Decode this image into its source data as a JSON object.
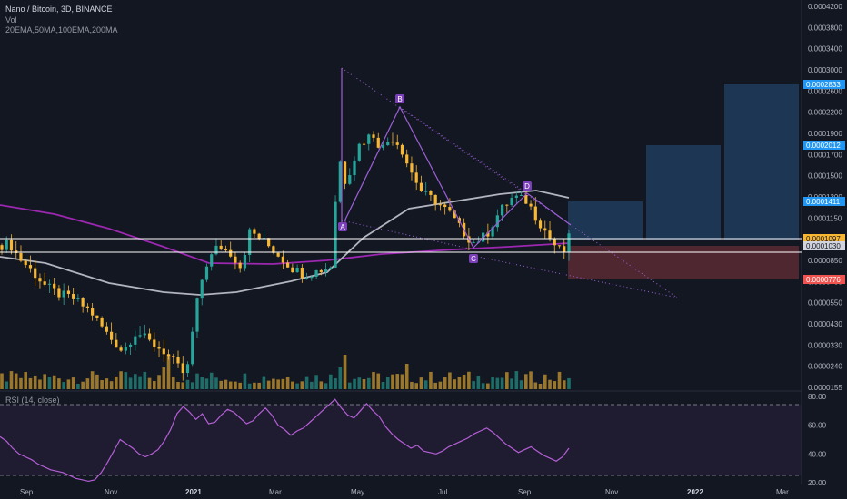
{
  "header": {
    "symbol_line": "Nano / Bitcoin, 3D, BINANCE",
    "vol_label": "Vol",
    "ema_label": "20EMA,50MA,100EMA,200MA",
    "rsi_label": "RSI (14, close)"
  },
  "colors": {
    "background": "#131722",
    "up": "#26a69a",
    "down": "#f7b733",
    "ma_gray": "#b2b5be",
    "ma_purple": "#9c27b0",
    "pattern": "#9c5fd6",
    "rsi": "#b45fd6",
    "target_blue": "#1f3a5a",
    "stop_red": "#5b2a32",
    "badge_blue": "#2196f3",
    "badge_yellow": "#f7b733",
    "badge_red": "#ef5350"
  },
  "chart_data": {
    "type": "candlestick",
    "title": "Nano / Bitcoin, 3D, BINANCE",
    "y_axis": {
      "scale": "log",
      "ticks": [
        "0.0004200",
        "0.0003800",
        "0.0003400",
        "0.0003000",
        "0.0002600",
        "0.0002200",
        "0.0001900",
        "0.0001700",
        "0.0001500",
        "0.0001300",
        "0.0001150",
        "0.0001000",
        "0.0000850",
        "0.0000700",
        "0.0000550",
        "0.0000430",
        "0.0000330",
        "0.0000240",
        "0.0000155"
      ]
    },
    "x_axis": {
      "ticks": [
        {
          "label": "Sep",
          "bold": false
        },
        {
          "label": "Nov",
          "bold": false
        },
        {
          "label": "2021",
          "bold": true
        },
        {
          "label": "Mar",
          "bold": false
        },
        {
          "label": "May",
          "bold": false
        },
        {
          "label": "Jul",
          "bold": false
        },
        {
          "label": "Sep",
          "bold": false
        },
        {
          "label": "Nov",
          "bold": false
        },
        {
          "label": "2022",
          "bold": true
        },
        {
          "label": "Mar",
          "bold": false
        }
      ]
    },
    "price_badges": [
      {
        "value": "0.0002833",
        "color": "#2196f3"
      },
      {
        "value": "0.0002012",
        "color": "#2196f3"
      },
      {
        "value": "0.0001411",
        "color": "#2196f3"
      },
      {
        "value": "0.0001097",
        "color": "#f7b733"
      },
      {
        "value": "0.0001030",
        "color": "#d1d4dc"
      },
      {
        "value": "0.0000776",
        "color": "#ef5350"
      }
    ],
    "horizontal_levels": [
      0.0001097,
      0.000103
    ],
    "pattern_points": [
      {
        "label": "A",
        "price": 9.8e-05
      },
      {
        "label": "B",
        "price": 0.000253
      },
      {
        "label": "C",
        "price": 0.0001
      },
      {
        "label": "D",
        "price": 0.00015
      }
    ],
    "targets": [
      0.0001411,
      0.0002012,
      0.0002833
    ],
    "stop": 7.76e-05,
    "rsi": {
      "ticks": [
        "80.00",
        "60.00",
        "40.00",
        "20.00"
      ],
      "levels": [
        70,
        30
      ],
      "values": [
        52,
        49,
        44,
        40,
        38,
        36,
        33,
        31,
        29,
        28,
        27,
        25,
        23,
        22,
        21,
        22,
        27,
        34,
        42,
        50,
        47,
        44,
        40,
        38,
        40,
        43,
        49,
        57,
        68,
        73,
        69,
        64,
        68,
        61,
        62,
        67,
        71,
        69,
        65,
        61,
        63,
        68,
        72,
        67,
        60,
        57,
        53,
        56,
        58,
        62,
        66,
        70,
        74,
        78,
        72,
        67,
        65,
        70,
        75,
        70,
        66,
        59,
        54,
        50,
        47,
        44,
        46,
        42,
        41,
        40,
        42,
        45,
        47,
        49,
        51,
        54,
        56,
        58,
        55,
        51,
        47,
        44,
        41,
        43,
        45,
        42,
        39,
        37,
        35,
        38,
        44
      ]
    },
    "candles_count": 120
  }
}
